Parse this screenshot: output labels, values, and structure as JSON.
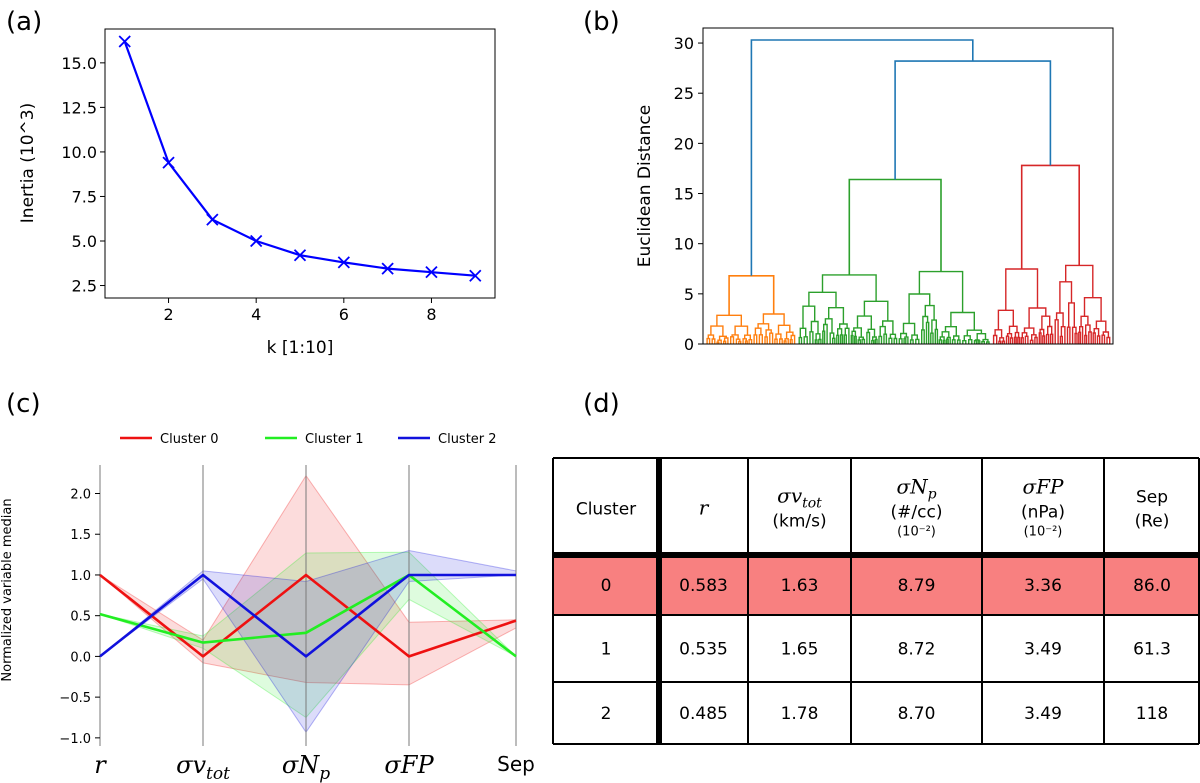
{
  "panels": {
    "a": "(a)",
    "b": "(b)",
    "c": "(c)",
    "d": "(d)"
  },
  "chart_data": [
    {
      "type": "line",
      "id": "a",
      "title": "",
      "xlabel": "k [1:10]",
      "ylabel": "Inertia (10^3)",
      "x": [
        1,
        2,
        3,
        4,
        5,
        6,
        7,
        8,
        9
      ],
      "y": [
        16.2,
        9.4,
        6.2,
        5.0,
        4.2,
        3.8,
        3.45,
        3.25,
        3.05
      ],
      "marker": "x",
      "color": "#0000ff",
      "xlim": [
        0.55,
        9.45
      ],
      "ylim": [
        1.8,
        16.9
      ],
      "xticks": [
        2,
        4,
        6,
        8
      ],
      "xtick_labels": [
        "2",
        "4",
        "6",
        "8"
      ],
      "yticks": [
        2.5,
        5.0,
        7.5,
        10.0,
        12.5,
        15.0
      ],
      "ytick_labels": [
        "2.5",
        "5.0",
        "7.5",
        "10.0",
        "12.5",
        "15.0"
      ]
    },
    {
      "type": "dendrogram",
      "id": "b",
      "ylabel": "Euclidean Distance",
      "ylim": [
        0,
        31.5
      ],
      "yticks": [
        0,
        5,
        10,
        15,
        20,
        25,
        30
      ],
      "ytick_labels": [
        "0",
        "5",
        "10",
        "15",
        "20",
        "25",
        "30"
      ],
      "colors": {
        "link": "#1f77b4",
        "orange": "#ff7f0e",
        "green": "#2ca02c",
        "red": "#d62728"
      },
      "merge_heights": {
        "root": 30.3,
        "green_red": 28.2,
        "green": 16.4,
        "red": 17.8,
        "orange": 6.8
      }
    },
    {
      "type": "line",
      "id": "c",
      "ylabel": "Normalized variable median",
      "categories": [
        "r",
        "σv_tot",
        "σN_p",
        "σFP",
        "Sep"
      ],
      "ylim": [
        -1.1,
        2.35
      ],
      "yticks": [
        -1.0,
        -0.5,
        0.0,
        0.5,
        1.0,
        1.5,
        2.0
      ],
      "ytick_labels": [
        "−1.0",
        "−0.5",
        "0.0",
        "0.5",
        "1.0",
        "1.5",
        "2.0"
      ],
      "legend_position": "top",
      "series": [
        {
          "name": "Cluster 0",
          "color": "#ee1111",
          "values": [
            1.0,
            0.0,
            1.0,
            0.0,
            0.44
          ],
          "band_low": [
            1.0,
            -0.08,
            -0.32,
            -0.35,
            0.35
          ],
          "band_high": [
            1.0,
            0.2,
            2.22,
            0.42,
            0.45
          ]
        },
        {
          "name": "Cluster 1",
          "color": "#22ee22",
          "values": [
            0.52,
            0.17,
            0.29,
            1.0,
            0.0
          ],
          "band_low": [
            0.52,
            0.1,
            -0.75,
            0.7,
            0.0
          ],
          "band_high": [
            0.52,
            0.25,
            1.27,
            1.28,
            0.0
          ]
        },
        {
          "name": "Cluster 2",
          "color": "#1111dd",
          "values": [
            0.0,
            1.0,
            0.0,
            1.0,
            1.0
          ],
          "band_low": [
            0.0,
            0.95,
            -0.93,
            0.92,
            1.0
          ],
          "band_high": [
            0.0,
            1.05,
            0.92,
            1.3,
            1.05
          ]
        }
      ]
    }
  ],
  "table": {
    "headers": [
      {
        "text": "Cluster"
      },
      {
        "math": "r"
      },
      {
        "math": "σv",
        "sub": "tot",
        "unit": "(km/s)"
      },
      {
        "math": "σN",
        "sub": "p",
        "unit": "(#/cc)",
        "scale": "(10⁻²)"
      },
      {
        "math": "σFP",
        "unit": "(nPa)",
        "scale": "(10⁻²)"
      },
      {
        "text": "Sep",
        "unit": "(Re)"
      }
    ],
    "rows": [
      [
        "0",
        "0.583",
        "1.63",
        "8.79",
        "3.36",
        "86.0"
      ],
      [
        "1",
        "0.535",
        "1.65",
        "8.72",
        "3.49",
        "61.3"
      ],
      [
        "2",
        "0.485",
        "1.78",
        "8.70",
        "3.49",
        "118"
      ]
    ],
    "highlight_row": 0,
    "highlight_color": "#f88080"
  }
}
